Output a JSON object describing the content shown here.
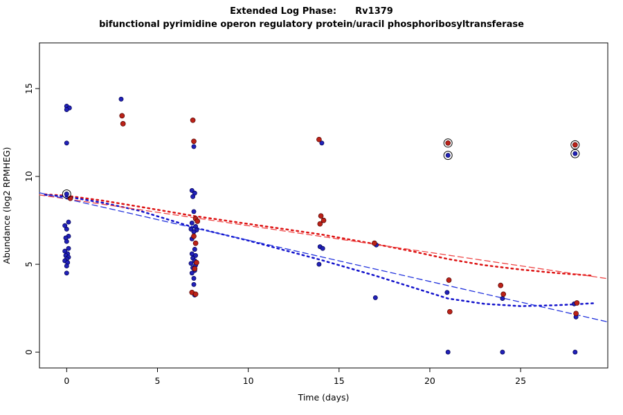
{
  "chart_data": {
    "type": "scatter",
    "title": "Extended Log Phase:      Rv1379",
    "subtitle": "bifunctional pyrimidine operon regulatory protein/uracil phosphoribosyltransferase",
    "xlabel": "Time  (days)",
    "ylabel": "Abundance  (log2 RPMHEG)",
    "xlim": [
      -1.5,
      29.8
    ],
    "ylim": [
      -0.9,
      17.6
    ],
    "xticks": [
      0,
      5,
      10,
      15,
      20,
      25
    ],
    "yticks": [
      0,
      5,
      10,
      15
    ],
    "grid": false,
    "legend": "none",
    "series": [
      {
        "name": "blue-sample-point",
        "color": "#2121b8",
        "stroke": "#00004d",
        "radius": 3.1,
        "points": [
          [
            0,
            14.0
          ],
          [
            0.15,
            13.9
          ],
          [
            0,
            13.8
          ],
          [
            0,
            11.9
          ],
          [
            0,
            9.0
          ],
          [
            0.1,
            7.4
          ],
          [
            -0.1,
            7.2
          ],
          [
            0,
            7.0
          ],
          [
            0.1,
            6.6
          ],
          [
            -0.05,
            6.5
          ],
          [
            0,
            6.3
          ],
          [
            0.1,
            5.9
          ],
          [
            -0.1,
            5.75
          ],
          [
            0.05,
            5.6
          ],
          [
            -0.05,
            5.5
          ],
          [
            0.1,
            5.4
          ],
          [
            0,
            5.3
          ],
          [
            -0.1,
            5.2
          ],
          [
            0.05,
            5.1
          ],
          [
            0,
            4.9
          ],
          [
            0,
            4.5
          ],
          [
            3,
            14.4
          ],
          [
            7,
            11.7
          ],
          [
            6.9,
            9.2
          ],
          [
            7.05,
            9.05
          ],
          [
            6.95,
            8.85
          ],
          [
            7,
            8.0
          ],
          [
            6.9,
            7.35
          ],
          [
            7.1,
            7.15
          ],
          [
            6.85,
            7.0
          ],
          [
            7.15,
            6.95
          ],
          [
            7,
            6.85
          ],
          [
            6.9,
            6.45
          ],
          [
            7.05,
            5.85
          ],
          [
            6.9,
            5.6
          ],
          [
            7.1,
            5.5
          ],
          [
            6.95,
            5.35
          ],
          [
            7.05,
            5.2
          ],
          [
            6.85,
            5.05
          ],
          [
            7.1,
            4.95
          ],
          [
            6.95,
            4.8
          ],
          [
            7.05,
            4.65
          ],
          [
            6.9,
            4.5
          ],
          [
            7,
            4.2
          ],
          [
            7,
            3.85
          ],
          [
            7.05,
            3.25
          ],
          [
            14.05,
            11.9
          ],
          [
            13.95,
            6.0
          ],
          [
            14.1,
            5.9
          ],
          [
            13.9,
            5.0
          ],
          [
            17.05,
            6.1
          ],
          [
            17,
            3.1
          ],
          [
            21,
            11.2
          ],
          [
            20.95,
            3.4
          ],
          [
            21,
            0
          ],
          [
            24,
            3.05
          ],
          [
            24,
            0
          ],
          [
            28,
            11.3
          ],
          [
            27.95,
            2.75
          ],
          [
            28.05,
            2.0
          ],
          [
            28,
            0
          ]
        ]
      },
      {
        "name": "red-sample-point",
        "color": "#bb2218",
        "stroke": "#4d0000",
        "radius": 3.5,
        "points": [
          [
            0.2,
            8.75
          ],
          [
            3.05,
            13.45
          ],
          [
            3.1,
            13.0
          ],
          [
            6.95,
            13.2
          ],
          [
            7,
            12.0
          ],
          [
            7.1,
            7.6
          ],
          [
            7.2,
            7.45
          ],
          [
            7,
            6.6
          ],
          [
            7.1,
            6.2
          ],
          [
            7.15,
            5.1
          ],
          [
            7.05,
            4.75
          ],
          [
            6.9,
            3.4
          ],
          [
            7.1,
            3.3
          ],
          [
            13.9,
            12.1
          ],
          [
            14,
            7.75
          ],
          [
            14.15,
            7.5
          ],
          [
            13.95,
            7.3
          ],
          [
            16.95,
            6.2
          ],
          [
            21,
            11.9
          ],
          [
            21.05,
            4.1
          ],
          [
            21.1,
            2.3
          ],
          [
            23.9,
            3.8
          ],
          [
            24.05,
            3.3
          ],
          [
            28,
            11.8
          ],
          [
            28.1,
            2.8
          ],
          [
            28.05,
            2.2
          ]
        ]
      }
    ],
    "outliers": [
      [
        0,
        9.0
      ],
      [
        21,
        11.9
      ],
      [
        21,
        11.2
      ],
      [
        28,
        11.8
      ],
      [
        28,
        11.3
      ]
    ],
    "lines": [
      {
        "name": "red-loess-curve",
        "color": "#dd1111",
        "style": "dotted",
        "points": [
          [
            -1.2,
            8.98
          ],
          [
            0,
            8.9
          ],
          [
            2,
            8.62
          ],
          [
            4,
            8.28
          ],
          [
            7,
            7.75
          ],
          [
            10,
            7.3
          ],
          [
            12,
            7.0
          ],
          [
            14,
            6.7
          ],
          [
            17,
            6.15
          ],
          [
            19,
            5.75
          ],
          [
            21,
            5.3
          ],
          [
            23,
            4.95
          ],
          [
            25,
            4.7
          ],
          [
            27,
            4.5
          ],
          [
            29,
            4.35
          ]
        ]
      },
      {
        "name": "blue-loess-curve",
        "color": "#1111cc",
        "style": "dotted",
        "points": [
          [
            -1.2,
            8.95
          ],
          [
            0,
            8.85
          ],
          [
            2,
            8.5
          ],
          [
            4,
            8.05
          ],
          [
            7,
            7.1
          ],
          [
            10,
            6.35
          ],
          [
            12,
            5.8
          ],
          [
            14,
            5.25
          ],
          [
            17,
            4.35
          ],
          [
            19,
            3.7
          ],
          [
            21,
            3.05
          ],
          [
            23,
            2.75
          ],
          [
            25,
            2.62
          ],
          [
            27,
            2.67
          ],
          [
            29,
            2.78
          ]
        ]
      },
      {
        "name": "red-linear-fit",
        "color": "#ee4444",
        "style": "dashed",
        "points": [
          [
            -1.5,
            8.95
          ],
          [
            29.8,
            4.18
          ]
        ]
      },
      {
        "name": "blue-linear-fit",
        "color": "#2233dd",
        "style": "dashed",
        "points": [
          [
            -1.5,
            9.07
          ],
          [
            29.8,
            1.72
          ]
        ]
      }
    ]
  }
}
